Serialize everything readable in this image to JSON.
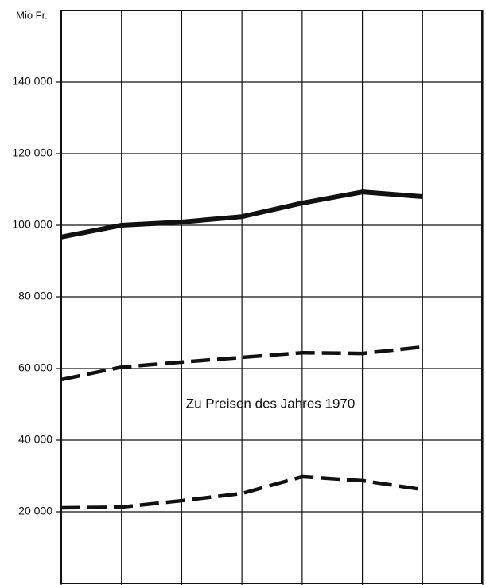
{
  "chart_data": {
    "type": "line",
    "y_label": "Mio Fr.",
    "annotation": "Zu Preisen des Jahres 1970",
    "categories": [
      null,
      null,
      null,
      null,
      null,
      null,
      null,
      null
    ],
    "series": [
      {
        "color": "#111111",
        "style": "solid",
        "values": [
          96700,
          100000,
          100900,
          102400,
          106200,
          109300,
          108000,
          null
        ]
      },
      {
        "color": "#111111",
        "style": "dashed",
        "values": [
          56900,
          60400,
          61800,
          63100,
          64400,
          64200,
          66000,
          null
        ]
      },
      {
        "color": "#111111",
        "style": "dashed",
        "values": [
          21100,
          21300,
          23100,
          25100,
          29800,
          28700,
          26200,
          null
        ]
      }
    ],
    "ylim": [
      0,
      160000
    ],
    "yticks": [
      {
        "value": 20000,
        "label": "20 000"
      },
      {
        "value": 40000,
        "label": "40 000"
      },
      {
        "value": 60000,
        "label": "60 000"
      },
      {
        "value": 80000,
        "label": "80 000"
      },
      {
        "value": 100000,
        "label": "100 000"
      },
      {
        "value": 120000,
        "label": "120 000"
      },
      {
        "value": 140000,
        "label": "140 000"
      }
    ],
    "grid": true
  }
}
